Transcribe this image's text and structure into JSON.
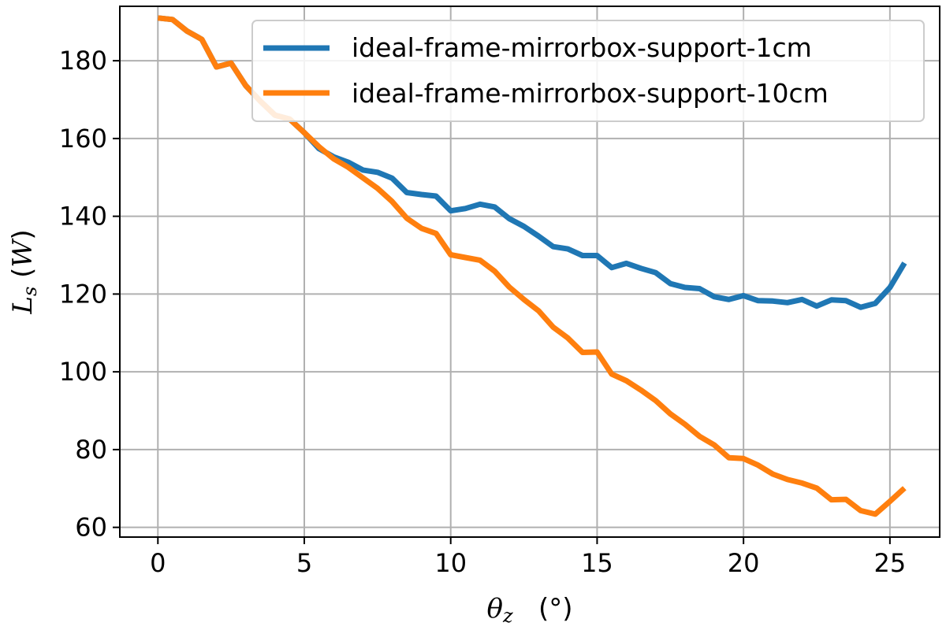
{
  "chart_data": {
    "type": "line",
    "xlabel": "θz (°)",
    "ylabel": "Ls (W)",
    "xlim": [
      -1.3,
      26.7
    ],
    "ylim": [
      57.5,
      194
    ],
    "xticks": [
      0,
      5,
      10,
      15,
      20,
      25
    ],
    "yticks": [
      60,
      80,
      100,
      120,
      140,
      160,
      180
    ],
    "grid": true,
    "legend_position": "top-right",
    "x": [
      0,
      0.5,
      1,
      1.5,
      2,
      2.5,
      3,
      3.5,
      4,
      4.5,
      5,
      5.5,
      6,
      6.5,
      7,
      7.5,
      8,
      8.5,
      9,
      9.5,
      10,
      10.5,
      11,
      11.5,
      12,
      12.5,
      13,
      13.5,
      14,
      14.5,
      15,
      15.5,
      16,
      16.5,
      17,
      17.5,
      18,
      18.5,
      19,
      19.5,
      20,
      20.5,
      21,
      21.5,
      22,
      22.5,
      23,
      23.5,
      24,
      24.5,
      25,
      25.5
    ],
    "series": [
      {
        "name": "ideal-frame-mirrorbox-support-1cm",
        "color": "#1f77b4",
        "values": [
          191,
          190.6,
          187.6,
          185.5,
          178.4,
          179.4,
          173.6,
          169.6,
          166,
          165,
          161.5,
          157.4,
          155.3,
          153.9,
          151.9,
          151.3,
          149.8,
          146.1,
          145.6,
          145.2,
          141.4,
          142,
          143.1,
          142.4,
          139.4,
          137.4,
          134.9,
          132.2,
          131.6,
          129.9,
          129.9,
          126.8,
          127.9,
          126.6,
          125.5,
          122.7,
          121.7,
          121.4,
          119.3,
          118.6,
          119.6,
          118.3,
          118.2,
          117.8,
          118.6,
          116.9,
          118.5,
          118.3,
          116.6,
          117.6,
          121.7,
          128
        ]
      },
      {
        "name": "ideal-frame-mirrorbox-support-10cm",
        "color": "#ff7f0e",
        "values": [
          191,
          190.6,
          187.6,
          185.5,
          178.4,
          179.4,
          173.6,
          169.6,
          166,
          165,
          161.5,
          157.9,
          154.8,
          152.6,
          149.9,
          147.2,
          143.8,
          139.5,
          136.9,
          135.6,
          130.1,
          129.4,
          128.7,
          125.9,
          121.8,
          118.6,
          115.7,
          111.5,
          108.7,
          105,
          105.1,
          99.4,
          97.7,
          95.3,
          92.6,
          89.2,
          86.5,
          83.4,
          81.2,
          77.9,
          77.7,
          76,
          73.7,
          72.3,
          71.4,
          70.1,
          67.1,
          67.2,
          64.3,
          63.4,
          66.7,
          70.1
        ]
      }
    ]
  }
}
